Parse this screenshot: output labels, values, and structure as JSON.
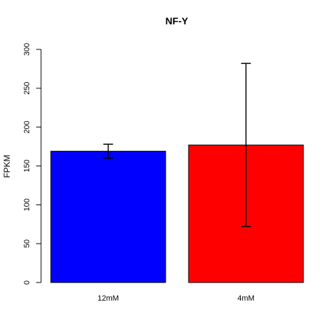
{
  "chart_data": {
    "type": "bar",
    "title": "NF-Y",
    "xlabel": "",
    "ylabel": "FPKM",
    "ylim": [
      0,
      300
    ],
    "yticks": [
      0,
      50,
      100,
      150,
      200,
      250,
      300
    ],
    "grid": false,
    "categories": [
      "12mM",
      "4mM"
    ],
    "values": [
      169,
      177
    ],
    "error_low": [
      160,
      72
    ],
    "error_high": [
      178,
      282
    ],
    "colors": [
      "#0000ff",
      "#ff0000"
    ]
  }
}
